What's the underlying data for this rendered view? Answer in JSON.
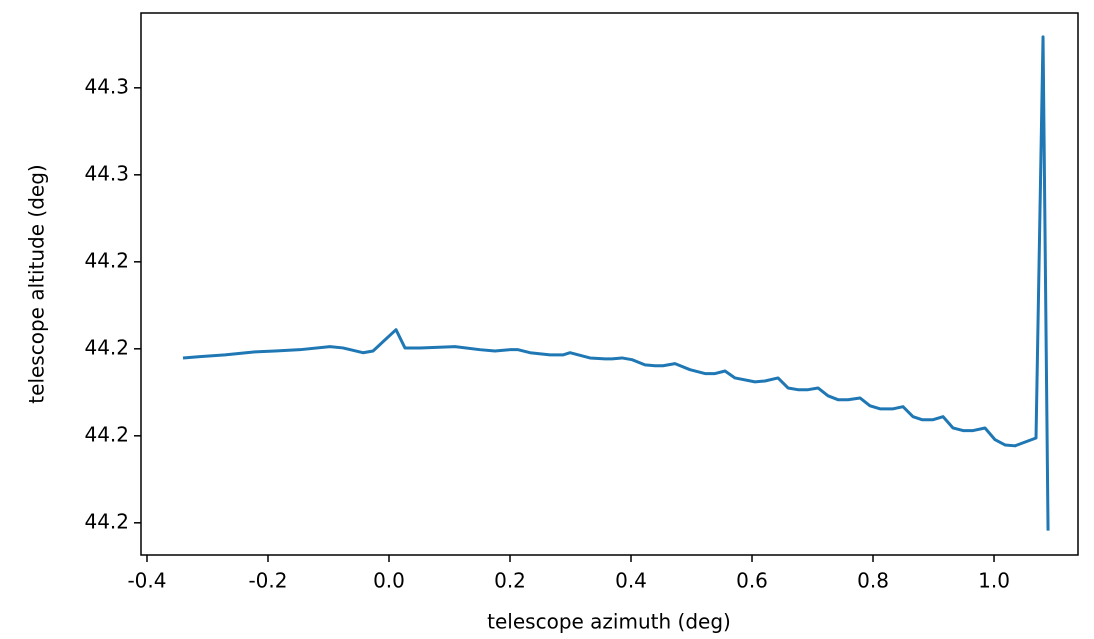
{
  "chart_data": {
    "type": "line",
    "xlabel": "telescope azimuth (deg)",
    "ylabel": "telescope altitude (deg)",
    "xlim": [
      -0.4099,
      1.1388
    ],
    "ylim": [
      44.1726,
      44.2972
    ],
    "xticks": [
      -0.4,
      -0.2,
      {
        "value": 0,
        "label": "0.0"
      },
      0.2,
      0.4,
      0.6,
      0.8,
      {
        "value": 1,
        "label": "1.0"
      }
    ],
    "yticks": [
      {
        "value": 44.18,
        "label": "44.2"
      },
      {
        "value": 44.2,
        "label": "44.2"
      },
      {
        "value": 44.22,
        "label": "44.2"
      },
      {
        "value": 44.24,
        "label": "44.2"
      },
      {
        "value": 44.26,
        "label": "44.3"
      },
      {
        "value": 44.28,
        "label": "44.3"
      }
    ],
    "series": [
      {
        "color": "#1f77b4",
        "x": [
          -0.3405,
          -0.3124,
          -0.2711,
          -0.2215,
          -0.1884,
          -0.1471,
          -0.0975,
          -0.076,
          -0.043,
          -0.0264,
          0.0116,
          0.0264,
          0.0512,
          0.1091,
          0.1504,
          0.1752,
          0.2,
          0.2132,
          0.2331,
          0.2661,
          0.2876,
          0.2992,
          0.3322,
          0.357,
          0.3686,
          0.3851,
          0.4017,
          0.4231,
          0.4397,
          0.4529,
          0.4727,
          0.4975,
          0.5223,
          0.5388,
          0.5554,
          0.5719,
          0.605,
          0.6215,
          0.643,
          0.6595,
          0.676,
          0.6926,
          0.7091,
          0.7256,
          0.7421,
          0.7587,
          0.7785,
          0.795,
          0.8116,
          0.8331,
          0.8496,
          0.8661,
          0.881,
          0.8992,
          0.9157,
          0.9322,
          0.9488,
          0.9653,
          0.9851,
          1.0017,
          1.0182,
          1.0347,
          1.0694,
          1.081,
          1.0893
        ],
        "values": [
          44.2179,
          44.2182,
          44.2186,
          44.2193,
          44.2195,
          44.2198,
          44.2205,
          44.2202,
          44.2191,
          44.2195,
          44.2244,
          44.2202,
          44.2202,
          44.2205,
          44.2198,
          44.2195,
          44.2198,
          44.2198,
          44.2191,
          44.2186,
          44.2186,
          44.2191,
          44.2179,
          44.2177,
          44.2177,
          44.2179,
          44.2175,
          44.2163,
          44.2161,
          44.2161,
          44.2166,
          44.2152,
          44.2143,
          44.2143,
          44.2149,
          44.2133,
          44.2124,
          44.2126,
          44.2133,
          44.211,
          44.2106,
          44.2106,
          44.211,
          44.2092,
          44.2083,
          44.2083,
          44.2087,
          44.2069,
          44.2062,
          44.2062,
          44.2067,
          44.2044,
          44.2037,
          44.2037,
          44.2044,
          44.2018,
          44.2012,
          44.2012,
          44.2018,
          44.1991,
          44.1979,
          44.1977,
          44.1995,
          44.2917,
          44.1782
        ]
      }
    ]
  }
}
